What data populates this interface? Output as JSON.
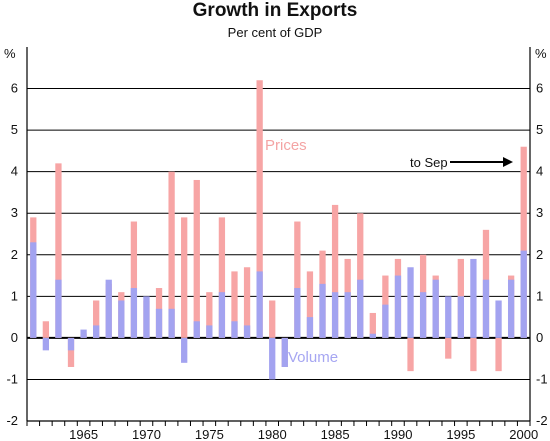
{
  "colors": {
    "prices": "#f7a5a5",
    "volume": "#a3a3f0",
    "axis": "#000000",
    "grid": "#000000"
  },
  "chart_data": {
    "type": "bar",
    "title": "Growth in Exports",
    "subtitle": "Per cent of GDP",
    "ylabel_left": "%",
    "ylabel_right": "%",
    "ylim": [
      -2,
      7
    ],
    "yticks": [
      -2,
      -1,
      0,
      1,
      2,
      3,
      4,
      5,
      6
    ],
    "xtick_labels": [
      "1965",
      "1970",
      "1975",
      "1980",
      "1985",
      "1990",
      "1995",
      "2000"
    ],
    "xtick_years": [
      1965,
      1970,
      1975,
      1980,
      1985,
      1990,
      1995,
      2000
    ],
    "x": [
      1961,
      1962,
      1963,
      1964,
      1965,
      1966,
      1967,
      1968,
      1969,
      1970,
      1971,
      1972,
      1973,
      1974,
      1975,
      1976,
      1977,
      1978,
      1979,
      1980,
      1981,
      1982,
      1983,
      1984,
      1985,
      1986,
      1987,
      1988,
      1989,
      1990,
      1991,
      1992,
      1993,
      1994,
      1995,
      1996,
      1997,
      1998,
      1999,
      2000
    ],
    "series": [
      {
        "name": "Prices",
        "values": [
          2.9,
          0.4,
          4.2,
          -0.7,
          0.1,
          0.9,
          1.3,
          1.1,
          2.8,
          0.9,
          1.2,
          4.0,
          2.9,
          3.8,
          1.1,
          2.9,
          1.6,
          1.7,
          6.2,
          0.9,
          -0.7,
          2.8,
          1.6,
          2.1,
          3.2,
          1.9,
          3.0,
          0.6,
          1.5,
          1.9,
          -0.8,
          2.0,
          1.5,
          -0.5,
          1.9,
          -0.8,
          2.6,
          -0.8,
          1.5,
          4.6
        ]
      },
      {
        "name": "Volume",
        "values": [
          2.3,
          -0.3,
          1.4,
          -0.3,
          0.2,
          0.3,
          1.4,
          0.9,
          1.2,
          1.0,
          0.7,
          0.7,
          -0.6,
          0.4,
          0.3,
          1.1,
          0.4,
          0.3,
          1.6,
          -1.0,
          -0.7,
          1.2,
          0.5,
          1.3,
          1.1,
          1.1,
          1.4,
          0.1,
          0.8,
          1.5,
          1.7,
          1.1,
          1.4,
          1.0,
          1.0,
          1.9,
          1.4,
          0.9,
          1.4,
          2.1
        ]
      }
    ],
    "annotations": {
      "prices_label": "Prices",
      "volume_label": "Volume",
      "to_sep_label": "to Sep"
    },
    "grid": true
  }
}
